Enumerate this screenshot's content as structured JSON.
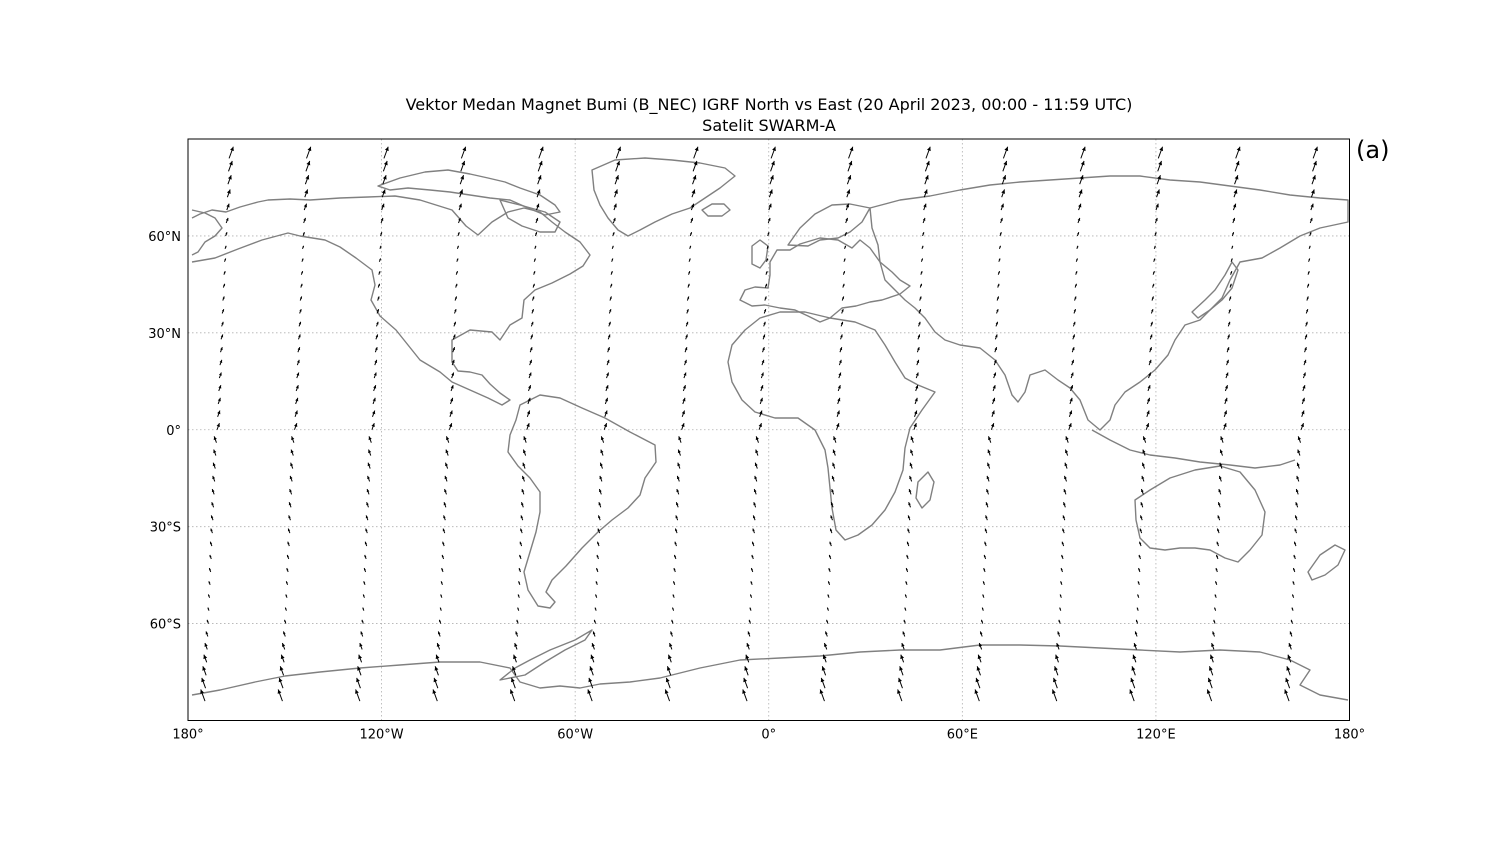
{
  "figure": {
    "title_line1": "Vektor Medan Magnet Bumi (B_NEC) IGRF North vs East (20 April 2023, 00:00 - 11:59 UTC)",
    "title_line2": "Satelit SWARM-A",
    "panel_label": "(a)"
  },
  "map": {
    "projection": "equirectangular",
    "lon_range": [
      -180,
      180
    ],
    "lat_range": [
      -90,
      90
    ],
    "coastline_color": "#808080",
    "grid": true,
    "x_ticks": [
      {
        "value": -180,
        "label": "180°"
      },
      {
        "value": -120,
        "label": "120°W"
      },
      {
        "value": -60,
        "label": "60°W"
      },
      {
        "value": 0,
        "label": "0°"
      },
      {
        "value": 60,
        "label": "60°E"
      },
      {
        "value": 120,
        "label": "120°E"
      },
      {
        "value": 180,
        "label": "180°"
      }
    ],
    "y_ticks": [
      {
        "value": 60,
        "label": "60°N"
      },
      {
        "value": 30,
        "label": "30°N"
      },
      {
        "value": 0,
        "label": "0°"
      },
      {
        "value": -30,
        "label": "30°S"
      },
      {
        "value": -60,
        "label": "60°S"
      }
    ]
  },
  "chart_data": {
    "type": "quiver-map",
    "quantity": "B_NEC North vs East",
    "arrow_color": "#000000",
    "tracks": [
      {
        "lon_equator": -171
      },
      {
        "lon_equator": -147
      },
      {
        "lon_equator": -123
      },
      {
        "lon_equator": -99
      },
      {
        "lon_equator": -75
      },
      {
        "lon_equator": -51
      },
      {
        "lon_equator": -27
      },
      {
        "lon_equator": -3
      },
      {
        "lon_equator": 21
      },
      {
        "lon_equator": 45
      },
      {
        "lon_equator": 69
      },
      {
        "lon_equator": 93
      },
      {
        "lon_equator": 117
      },
      {
        "lon_equator": 141
      },
      {
        "lon_equator": 165
      }
    ]
  }
}
